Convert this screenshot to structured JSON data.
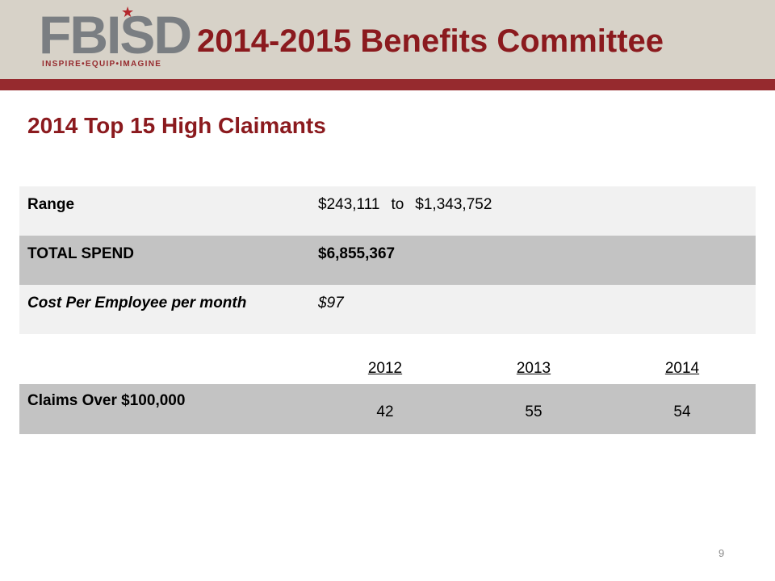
{
  "header": {
    "logo_text": "FBISD",
    "logo_tagline": "INSPIRE•EQUIP•IMAGINE",
    "title": "2014-2015 Benefits Committee"
  },
  "section": {
    "heading": "2014 Top 15 High Claimants"
  },
  "summary": {
    "range": {
      "label": "Range",
      "low": "$243,111",
      "connector": "to",
      "high": "$1,343,752"
    },
    "total_spend": {
      "label": "TOTAL SPEND",
      "value": "$6,855,367"
    },
    "cost_per_employee": {
      "label": "Cost Per Employee per month",
      "value": "$97"
    }
  },
  "claims": {
    "years": [
      "2012",
      "2013",
      "2014"
    ],
    "row_label": "Claims Over $100,000",
    "values": [
      "42",
      "55",
      "54"
    ]
  },
  "footer": {
    "page_number": "9"
  },
  "colors": {
    "brand_red": "#8b1a1e",
    "header_band": "#d7d2c8",
    "header_rule": "#962a2e",
    "row_light": "#f1f1f1",
    "row_dark": "#c3c3c3"
  }
}
